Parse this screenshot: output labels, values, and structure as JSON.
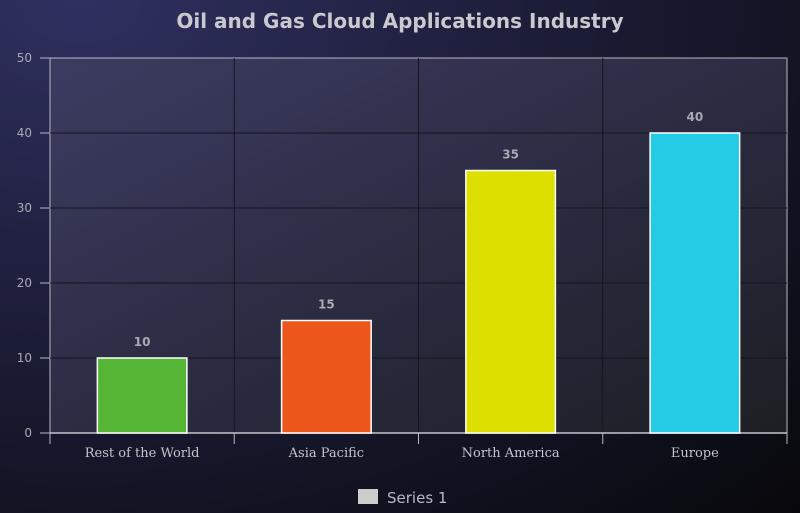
{
  "chart_data": {
    "type": "bar",
    "title": "Oil and Gas Cloud Applications Industry",
    "categories": [
      "Rest of the World",
      "Asia Pacific",
      "North America",
      "Europe"
    ],
    "series": [
      {
        "name": "Series 1",
        "values": [
          10,
          15,
          35,
          40
        ]
      }
    ],
    "bar_colors": [
      "#55b534",
      "#ec561b",
      "#dddf00",
      "#24cbe5"
    ],
    "legend_color": "#cccccc",
    "ylim": [
      0,
      50
    ],
    "yticks": [
      0,
      10,
      20,
      30,
      40,
      50
    ],
    "grid": true,
    "legend_position": "bottom-center",
    "data_labels": true
  }
}
